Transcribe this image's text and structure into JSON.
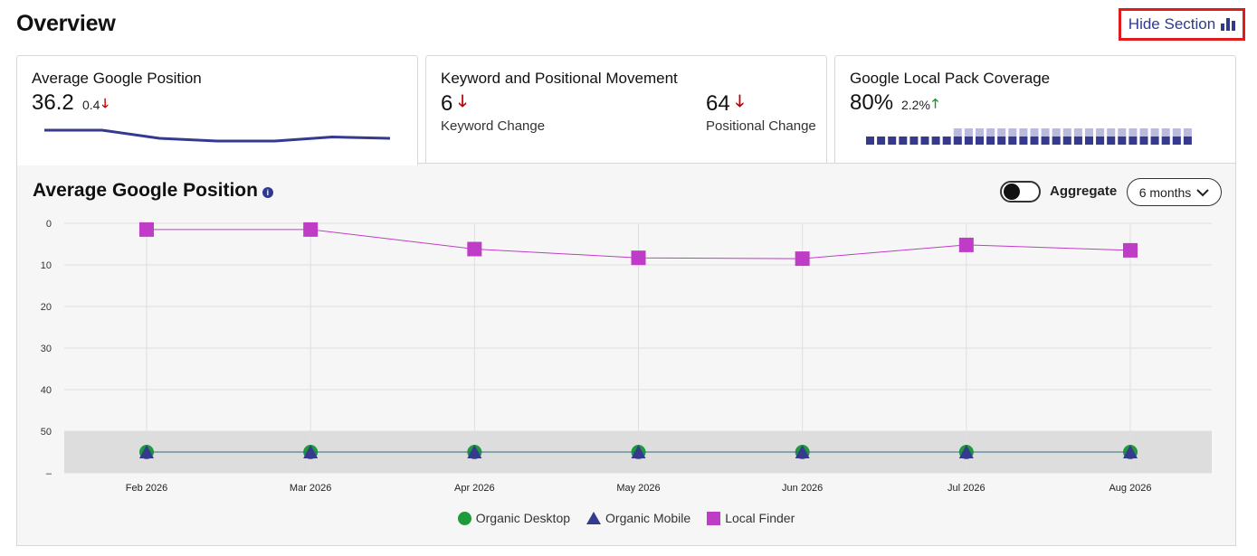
{
  "page": {
    "title": "Overview"
  },
  "hide_section": {
    "label": "Hide Section",
    "icon": "bar-chart-icon"
  },
  "cards": {
    "avg_position": {
      "title": "Average Google Position",
      "value": "36.2",
      "change": "0.4",
      "change_direction": "down",
      "sparkline": [
        9,
        9,
        15,
        17,
        17,
        14,
        15
      ]
    },
    "movement": {
      "title": "Keyword and Positional Movement",
      "keyword_value": "6",
      "keyword_label": "Keyword Change",
      "positional_value": "64",
      "positional_label": "Positional Change",
      "direction": "down"
    },
    "local_pack": {
      "title": "Google Local Pack Coverage",
      "value": "80%",
      "change": "2.2%",
      "change_direction": "up",
      "coverage_bars": [
        0.5,
        0.5,
        0.5,
        0.5,
        0.5,
        0.5,
        0.5,
        0.5,
        1,
        1,
        1,
        1,
        1,
        1,
        1,
        1,
        1,
        1,
        1,
        1,
        1,
        1,
        1,
        1,
        1,
        1,
        1,
        1,
        1,
        1
      ]
    }
  },
  "panel": {
    "title": "Average Google Position",
    "aggregate_label": "Aggregate",
    "aggregate_on": false,
    "range_label": "6 months"
  },
  "chart_data": {
    "type": "line",
    "x": [
      "Feb 2026",
      "Mar 2026",
      "Apr 2026",
      "May 2026",
      "Jun 2026",
      "Jul 2026",
      "Aug 2026"
    ],
    "y_ticks": [
      "0",
      "10",
      "20",
      "30",
      "40",
      "50",
      "–"
    ],
    "ylim": [
      0,
      60
    ],
    "y_inverted": true,
    "grid": true,
    "legend_position": "bottom",
    "series": [
      {
        "name": "Organic Desktop",
        "marker": "circle",
        "color": "#1e9a3a",
        "values": [
          55,
          55,
          55,
          55,
          55,
          55,
          55
        ]
      },
      {
        "name": "Organic Mobile",
        "marker": "triangle",
        "color": "#353a8e",
        "values": [
          55,
          55,
          55,
          55,
          55,
          55,
          55
        ]
      },
      {
        "name": "Local Finder",
        "marker": "square",
        "color": "#bf3cc6",
        "values": [
          1.5,
          1.5,
          6.2,
          8.3,
          8.5,
          5.2,
          6.5
        ]
      }
    ]
  }
}
